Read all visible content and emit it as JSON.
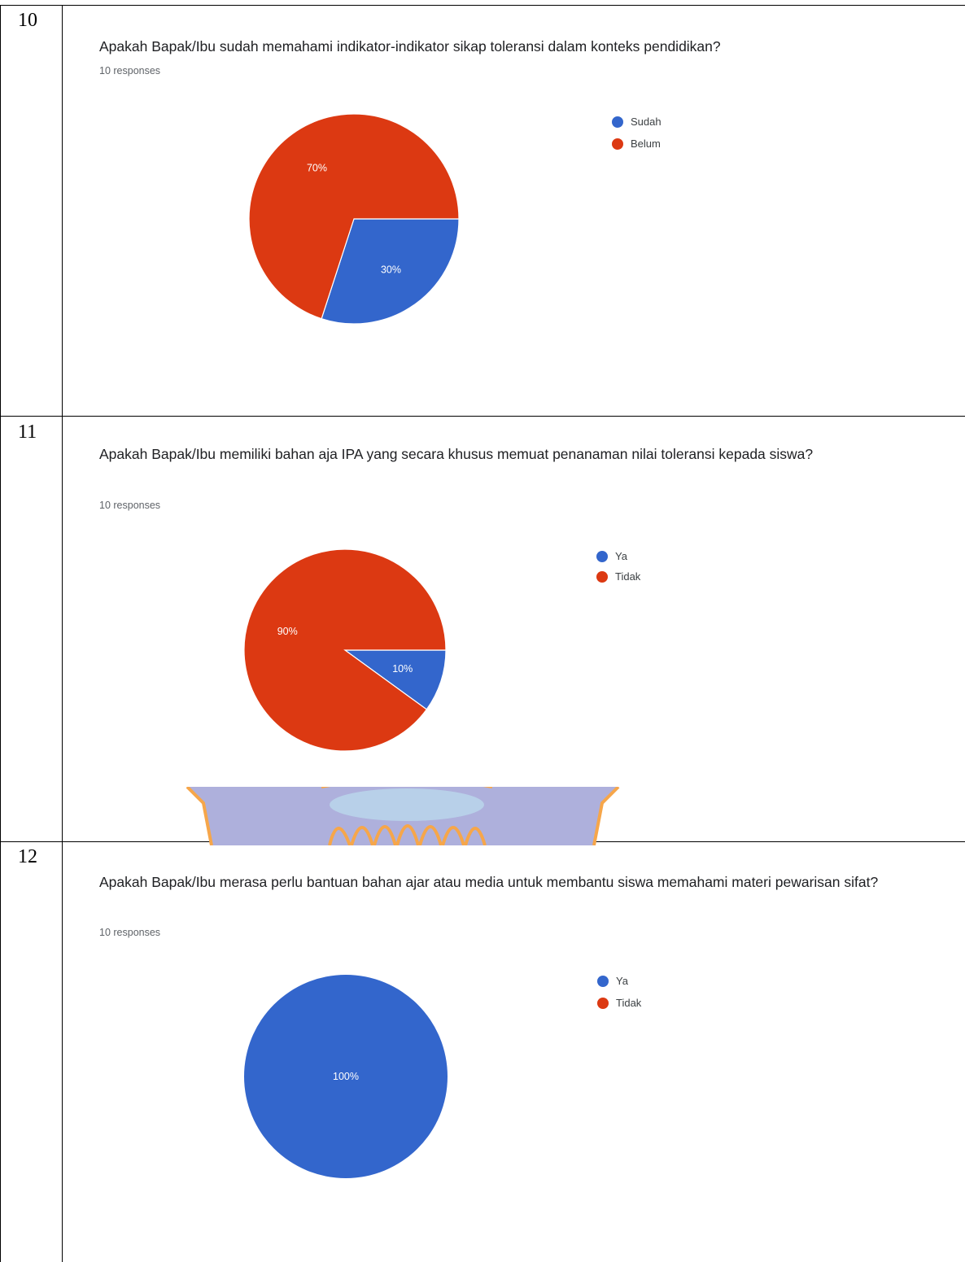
{
  "charts": [
    {
      "number": "10",
      "question": "Apakah Bapak/Ibu sudah memahami indikator-indikator sikap toleransi dalam konteks pendidikan?",
      "responses": "10 responses",
      "legend": [
        "Sudah",
        "Belum"
      ]
    },
    {
      "number": "11",
      "question": "Apakah Bapak/Ibu memiliki bahan aja IPA yang secara khusus memuat penanaman nilai toleransi kepada siswa?",
      "responses": "10 responses",
      "legend": [
        "Ya",
        "Tidak"
      ]
    },
    {
      "number": "12",
      "question": "Apakah Bapak/Ibu merasa perlu bantuan bahan ajar atau media untuk membantu siswa memahami materi pewarisan sifat?",
      "responses": "10 responses",
      "legend": [
        "Ya",
        "Tidak"
      ]
    }
  ],
  "colors": {
    "blue": "#3366cc",
    "red": "#dc3912"
  },
  "chart_data": [
    {
      "type": "pie",
      "title": "Apakah Bapak/Ibu sudah memahami indikator-indikator sikap toleransi dalam konteks pendidikan?",
      "categories": [
        "Sudah",
        "Belum"
      ],
      "values": [
        30,
        70
      ],
      "labels": [
        "30%",
        "70%"
      ],
      "colors": [
        "#3366cc",
        "#dc3912"
      ],
      "legend": "right"
    },
    {
      "type": "pie",
      "title": "Apakah Bapak/Ibu memiliki bahan aja IPA yang secara khusus memuat penanaman nilai toleransi kepada siswa?",
      "categories": [
        "Ya",
        "Tidak"
      ],
      "values": [
        10,
        90
      ],
      "labels": [
        "10%",
        "90%"
      ],
      "colors": [
        "#3366cc",
        "#dc3912"
      ],
      "legend": "right"
    },
    {
      "type": "pie",
      "title": "Apakah Bapak/Ibu merasa perlu bantuan bahan ajar atau media untuk membantu siswa memahami materi pewarisan sifat?",
      "categories": [
        "Ya",
        "Tidak"
      ],
      "values": [
        100,
        0
      ],
      "labels": [
        "100%",
        ""
      ],
      "colors": [
        "#3366cc",
        "#dc3912"
      ],
      "legend": "right"
    }
  ]
}
